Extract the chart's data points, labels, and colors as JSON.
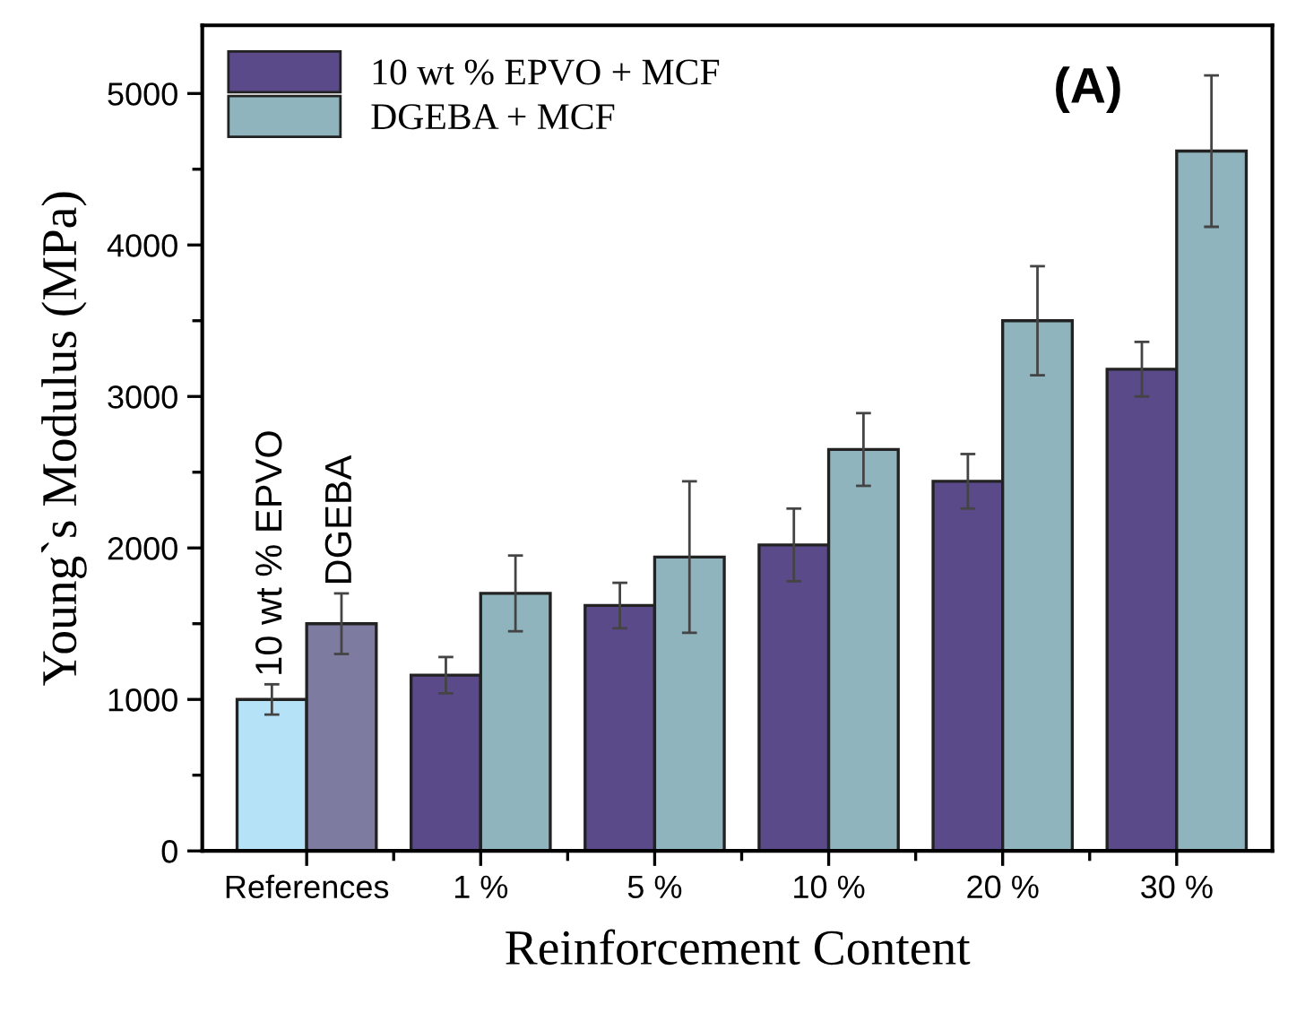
{
  "chart_data": {
    "type": "bar",
    "xlabel": "Reinforcement Content",
    "ylabel": "Young`s Modulus (MPa)",
    "categories": [
      "References",
      "1 %",
      "5 %",
      "10 %",
      "20 %",
      "30 %"
    ],
    "series": [
      {
        "name": "10 wt % EPVO + MCF",
        "color": "#5b4a8a",
        "colors": [
          "#b5e2f7",
          "#5b4a8a",
          "#5b4a8a",
          "#5b4a8a",
          "#5b4a8a",
          "#5b4a8a"
        ],
        "values": [
          1000,
          1160,
          1620,
          2020,
          2440,
          3180
        ],
        "errors": [
          100,
          120,
          150,
          240,
          180,
          180
        ]
      },
      {
        "name": "DGEBA + MCF",
        "color": "#8fb4bd",
        "colors": [
          "#7d7b9f",
          "#8fb4bd",
          "#8fb4bd",
          "#8fb4bd",
          "#8fb4bd",
          "#8fb4bd"
        ],
        "values": [
          1500,
          1700,
          1940,
          2650,
          3500,
          4620
        ],
        "errors": [
          200,
          250,
          500,
          240,
          360,
          500
        ]
      }
    ],
    "ylim": [
      0,
      5450
    ],
    "yticks": [
      0,
      1000,
      2000,
      3000,
      4000,
      5000
    ],
    "annotations": [
      "10 wt % EPVO",
      "DGEBA",
      "(A)"
    ],
    "legend": "top left",
    "grid": false
  }
}
